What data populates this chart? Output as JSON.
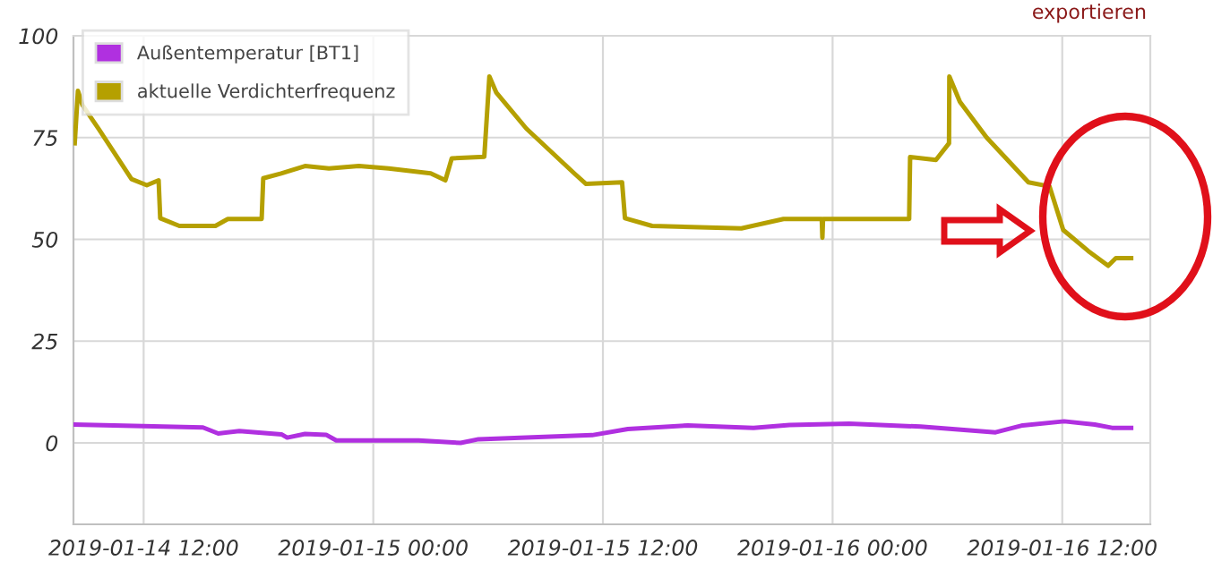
{
  "chart_data": {
    "type": "line",
    "annotations": [
      "exportieren"
    ],
    "series": [
      {
        "name": "Außentemperatur [BT1]",
        "color": "#b030e0",
        "x": [
          "2019-01-14T08:24",
          "2019-01-14T15:06",
          "2019-01-14T15:54",
          "2019-01-14T17:00",
          "2019-01-14T19:12",
          "2019-01-14T19:30",
          "2019-01-14T20:26",
          "2019-01-14T21:32",
          "2019-01-14T22:04",
          "2019-01-15T02:22",
          "2019-01-15T04:34",
          "2019-01-15T05:30",
          "2019-01-15T11:26",
          "2019-01-15T13:18",
          "2019-01-15T16:26",
          "2019-01-15T19:52",
          "2019-01-15T21:45",
          "2019-01-16T00:52",
          "2019-01-16T04:36",
          "2019-01-16T08:31",
          "2019-01-16T09:56",
          "2019-01-16T12:06",
          "2019-01-16T13:42",
          "2019-01-16T14:36",
          "2019-01-16T15:36"
        ],
        "values": [
          4.5,
          3.8,
          2.3,
          2.9,
          2.1,
          1.3,
          2.2,
          2.0,
          0.6,
          0.6,
          0.0,
          0.9,
          1.9,
          3.4,
          4.3,
          3.7,
          4.4,
          4.7,
          4.0,
          2.6,
          4.3,
          5.3,
          4.5,
          3.7,
          3.7
        ]
      },
      {
        "name": "aktuelle Verdichterfrequenz",
        "color": "#b5a000",
        "x": [
          "2019-01-14T08:24",
          "2019-01-14T08:34",
          "2019-01-14T08:48",
          "2019-01-14T09:40",
          "2019-01-14T11:22",
          "2019-01-14T12:10",
          "2019-01-14T12:47",
          "2019-01-14T12:52",
          "2019-01-14T13:52",
          "2019-01-14T15:45",
          "2019-01-14T16:24",
          "2019-01-14T18:10",
          "2019-01-14T18:15",
          "2019-01-14T19:11",
          "2019-01-14T20:26",
          "2019-01-14T21:41",
          "2019-01-14T23:15",
          "2019-01-15T00:48",
          "2019-01-15T03:00",
          "2019-01-15T03:46",
          "2019-01-15T04:06",
          "2019-01-15T05:48",
          "2019-01-15T06:04",
          "2019-01-15T06:26",
          "2019-01-15T08:00",
          "2019-01-15T10:30",
          "2019-01-15T11:07",
          "2019-01-15T13:00",
          "2019-01-15T13:09",
          "2019-01-15T14:34",
          "2019-01-15T16:36",
          "2019-01-15T19:14",
          "2019-01-15T21:26",
          "2019-01-15T23:26",
          "2019-01-15T23:28",
          "2019-01-15T23:30",
          "2019-01-16T04:00",
          "2019-01-16T04:03",
          "2019-01-16T05:24",
          "2019-01-16T06:05",
          "2019-01-16T06:06",
          "2019-01-16T06:39",
          "2019-01-16T08:03",
          "2019-01-16T10:14",
          "2019-01-16T11:20",
          "2019-01-16T12:03",
          "2019-01-16T13:22",
          "2019-01-16T14:24",
          "2019-01-16T14:48",
          "2019-01-16T15:36"
        ],
        "values": [
          73.6,
          86.5,
          83,
          77,
          64.8,
          63.3,
          64.5,
          55.2,
          53.3,
          53.3,
          55,
          55,
          65,
          66.2,
          68,
          67.4,
          68,
          67.4,
          66.2,
          64.5,
          69.9,
          70.3,
          90,
          86,
          77.2,
          66.2,
          63.6,
          64,
          55.2,
          53.3,
          53,
          52.7,
          55,
          55,
          50.4,
          55,
          55,
          70.2,
          69.5,
          73.6,
          90,
          83.8,
          75,
          64,
          63,
          52.3,
          47.1,
          43.5,
          45.4,
          45.4
        ]
      }
    ],
    "xlim": [
      "2019-01-14T08:20",
      "2019-01-16T16:36"
    ],
    "xticks": [
      {
        "value": "2019-01-14T12:00",
        "label": "2019-01-14 12:00"
      },
      {
        "value": "2019-01-15T00:00",
        "label": "2019-01-15 00:00"
      },
      {
        "value": "2019-01-15T12:00",
        "label": "2019-01-15 12:00"
      },
      {
        "value": "2019-01-16T00:00",
        "label": "2019-01-16 00:00"
      },
      {
        "value": "2019-01-16T12:00",
        "label": "2019-01-16 12:00"
      }
    ],
    "ylim": [
      -20,
      100
    ],
    "yticks": [
      0,
      25,
      50,
      75,
      100
    ],
    "grid": true,
    "legend": "top left",
    "marker": "none",
    "line_style": "solid"
  }
}
